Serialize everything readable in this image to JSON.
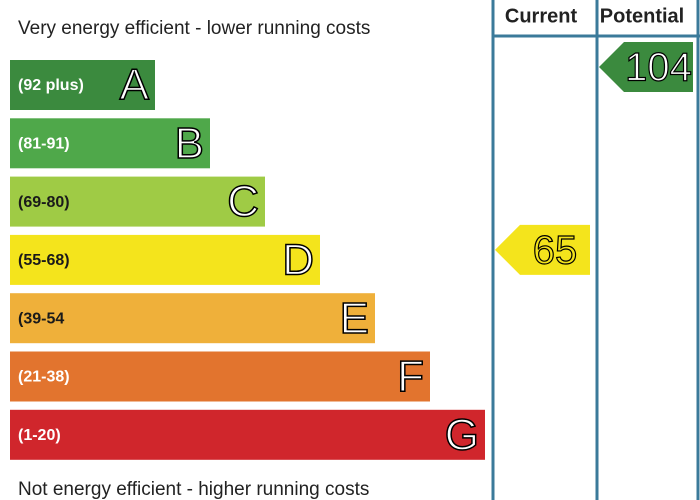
{
  "header": {
    "top_note": "Very energy efficient - lower running costs",
    "bottom_note": "Not energy efficient - higher running costs"
  },
  "columns": [
    "Current",
    "Potential"
  ],
  "bands": [
    {
      "range": "(92 plus)",
      "letter": "A",
      "color": "#3b8a3e",
      "text_color": "#ffffff"
    },
    {
      "range": "(81-91)",
      "letter": "B",
      "color": "#4fa84a",
      "text_color": "#ffffff"
    },
    {
      "range": "(69-80)",
      "letter": "C",
      "color": "#9fcb45",
      "text_color": "#1a1a1a"
    },
    {
      "range": "(55-68)",
      "letter": "D",
      "color": "#f4e41c",
      "text_color": "#1a1a1a"
    },
    {
      "range": "(39-54",
      "letter": "E",
      "color": "#efb03a",
      "text_color": "#1a1a1a"
    },
    {
      "range": "(21-38)",
      "letter": "F",
      "color": "#e2742e",
      "text_color": "#ffffff"
    },
    {
      "range": "(1-20)",
      "letter": "G",
      "color": "#d0262c",
      "text_color": "#ffffff"
    }
  ],
  "ratings": {
    "current": 65,
    "potential": 104
  }
}
